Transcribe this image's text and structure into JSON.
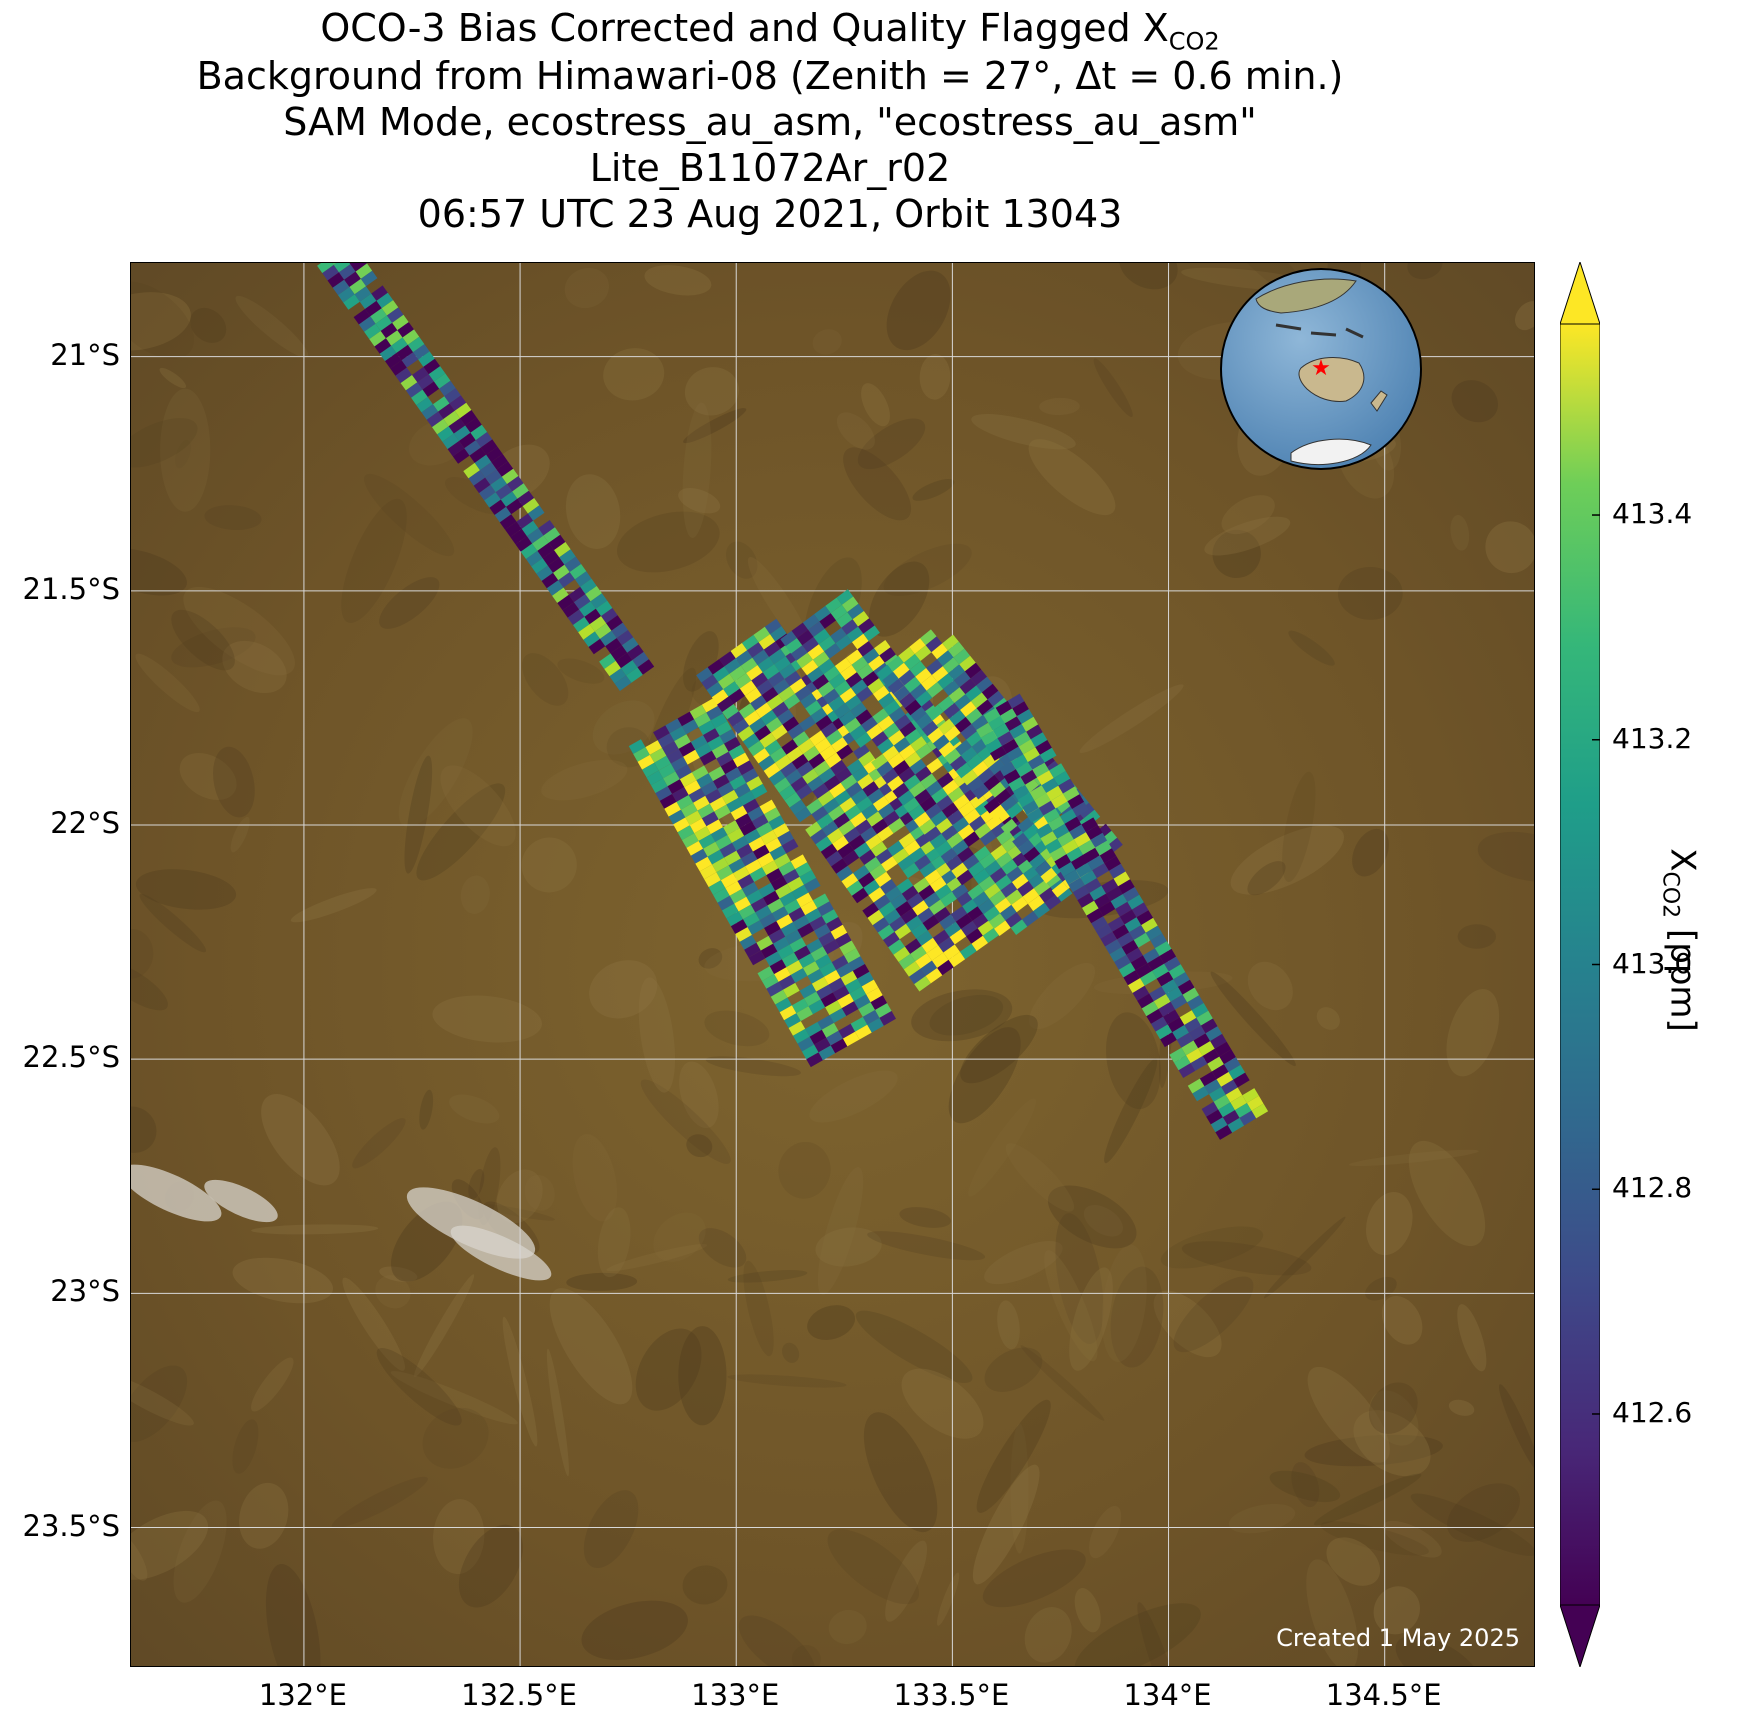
{
  "title": {
    "line1_prefix": "OCO-3 Bias Corrected and Quality Flagged X",
    "line1_sub": "CO2",
    "line2": "Background from Himawari-08 (Zenith = 27°, Δt =  0.6 min.)",
    "line3": "SAM Mode, ecostress_au_asm, \"ecostress_au_asm\"",
    "line4": "Lite_B11072Ar_r02",
    "line5": "06:57 UTC 23 Aug 2021, Orbit 13043"
  },
  "map": {
    "lon_range": [
      131.6,
      134.85
    ],
    "lat_range": [
      -23.8,
      -20.8
    ],
    "lon_ticks": [
      132.0,
      132.5,
      133.0,
      133.5,
      134.0,
      134.5
    ],
    "lon_tick_labels": [
      "132°E",
      "132.5°E",
      "133°E",
      "133.5°E",
      "134°E",
      "134.5°E"
    ],
    "lat_ticks": [
      -21.0,
      -21.5,
      -22.0,
      -22.5,
      -23.0,
      -23.5
    ],
    "lat_tick_labels": [
      "21°S",
      "21.5°S",
      "22°S",
      "22.5°S",
      "23°S",
      "23.5°S"
    ],
    "gridlines": true,
    "background_color": "#7a5f2c",
    "created_note": "Created 1 May 2025",
    "inset_globe": {
      "placement": "top-right",
      "marker": "red star",
      "marker_color": "#ff0000"
    }
  },
  "colorbar": {
    "colormap": "viridis",
    "range": [
      412.43,
      413.57
    ],
    "extend": "both",
    "ticks": [
      412.6,
      412.8,
      413.0,
      413.2,
      413.4
    ],
    "tick_labels": [
      "412.6",
      "412.8",
      "413.0",
      "413.2",
      "413.4"
    ],
    "label_prefix": "X",
    "label_sub": "CO2",
    "label_suffix": " [ppm]"
  },
  "chart_data": {
    "type": "heatmap",
    "swaths": [
      {
        "start": [
          132.07,
          -20.78
        ],
        "end": [
          132.78,
          -21.7
        ],
        "width_deg": 0.09
      },
      {
        "start": [
          132.85,
          -21.78
        ],
        "end": [
          133.28,
          -22.48
        ],
        "width_deg": 0.22
      },
      {
        "start": [
          133.0,
          -21.62
        ],
        "end": [
          133.52,
          -22.3
        ],
        "width_deg": 0.22
      },
      {
        "start": [
          133.18,
          -21.55
        ],
        "end": [
          133.7,
          -22.2
        ],
        "width_deg": 0.2
      },
      {
        "start": [
          133.4,
          -21.62
        ],
        "end": [
          133.82,
          -22.1
        ],
        "width_deg": 0.18
      },
      {
        "start": [
          133.6,
          -21.75
        ],
        "end": [
          134.18,
          -22.65
        ],
        "width_deg": 0.14
      }
    ],
    "value_range": [
      412.43,
      413.57
    ]
  }
}
